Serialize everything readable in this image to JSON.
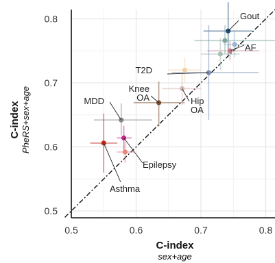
{
  "chart_data": {
    "type": "scatter",
    "xlabel": "C-index",
    "xlabel_sub": "sex+age",
    "ylabel": "C-index",
    "ylabel_sub": "PheRS+sex+age",
    "xlim": [
      0.5,
      0.82
    ],
    "ylim": [
      0.5,
      0.82
    ],
    "x_ticks": [
      0.5,
      0.6,
      0.7,
      0.8
    ],
    "y_ticks": [
      0.5,
      0.6,
      0.7,
      0.8
    ],
    "x_tick_labels": [
      "0.5",
      "0.6",
      "0.7",
      "0.8"
    ],
    "y_tick_labels": [
      "0.5",
      "0.6",
      "0.7",
      "0.8"
    ],
    "grid": true,
    "reference_line": "y = x (dash-dot)",
    "points": [
      {
        "label": "Gout",
        "x": 0.742,
        "y": 0.781,
        "x_err": [
          0.704,
          0.78
        ],
        "y_err": [
          0.74,
          0.826
        ],
        "color": "#1f4e79"
      },
      {
        "label": "AF",
        "x": 0.745,
        "y": 0.75,
        "x_err": [
          0.71,
          0.79
        ],
        "y_err": [
          0.735,
          0.765
        ],
        "color": "#c97f8a"
      },
      {
        "label": "",
        "x": 0.737,
        "y": 0.766,
        "x_err": [
          0.69,
          0.82
        ],
        "y_err": [
          0.745,
          0.79
        ],
        "color": "#7fa7a0"
      },
      {
        "label": "",
        "x": 0.73,
        "y": 0.745,
        "x_err": [
          0.7,
          0.76
        ],
        "y_err": [
          0.72,
          0.77
        ],
        "color": "#a7c0b8"
      },
      {
        "label": "",
        "x": 0.752,
        "y": 0.76,
        "x_err": [
          0.735,
          0.77
        ],
        "y_err": [
          0.74,
          0.78
        ],
        "color": "#9ab7d0"
      },
      {
        "label": "T2D",
        "x": 0.712,
        "y": 0.716,
        "x_err": [
          0.655,
          0.789
        ],
        "y_err": [
          0.642,
          0.79
        ],
        "color": "#7d8fb3"
      },
      {
        "label": "",
        "x": 0.675,
        "y": 0.72,
        "x_err": [
          0.65,
          0.7
        ],
        "y_err": [
          0.7,
          0.74
        ],
        "color": "#f2d3a8"
      },
      {
        "label": "Knee OA",
        "x": 0.635,
        "y": 0.669,
        "x_err": [
          0.596,
          0.675
        ],
        "y_err": [
          0.632,
          0.702
        ],
        "color": "#7a4a2e"
      },
      {
        "label": "Hip OA",
        "x": 0.671,
        "y": 0.691,
        "x_err": [
          0.64,
          0.7
        ],
        "y_err": [
          0.665,
          0.715
        ],
        "color": "#d7b7b2"
      },
      {
        "label": "MDD",
        "x": 0.577,
        "y": 0.642,
        "x_err": [
          0.535,
          0.625
        ],
        "y_err": [
          0.618,
          0.668
        ],
        "color": "#888888"
      },
      {
        "label": "Asthma",
        "x": 0.55,
        "y": 0.606,
        "x_err": [
          0.529,
          0.571
        ],
        "y_err": [
          0.56,
          0.652
        ],
        "color": "#c0281c"
      },
      {
        "label": "Epilepsy",
        "x": 0.581,
        "y": 0.614,
        "x_err": [
          0.57,
          0.593
        ],
        "y_err": [
          0.595,
          0.633
        ],
        "color": "#c2258b"
      },
      {
        "label": "",
        "x": 0.583,
        "y": 0.592,
        "x_err": [
          0.57,
          0.596
        ],
        "y_err": [
          0.575,
          0.608
        ],
        "color": "#e8857a"
      }
    ]
  }
}
